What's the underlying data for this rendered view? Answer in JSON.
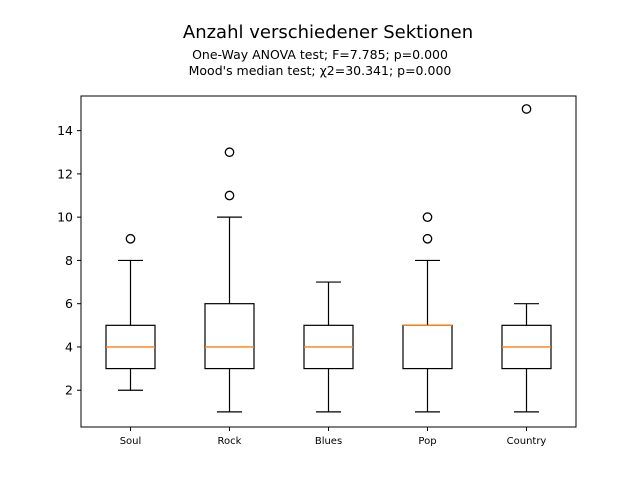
{
  "chart_data": {
    "type": "box",
    "title": "Anzahl verschiedener Sektionen",
    "subtitle_lines": [
      "One-Way ANOVA test; F=7.785; p=0.000",
      "Mood's median test; χ2=30.341; p=0.000"
    ],
    "xlabel": "",
    "ylabel": "",
    "ylim": [
      0.3,
      15.6
    ],
    "yticks": [
      2,
      4,
      6,
      8,
      10,
      12,
      14
    ],
    "grid": false,
    "categories": [
      "Soul",
      "Rock",
      "Blues",
      "Pop",
      "Country"
    ],
    "boxes": [
      {
        "category": "Soul",
        "whisker_low": 2,
        "q1": 3,
        "median": 4,
        "q3": 5,
        "whisker_high": 8,
        "outliers": [
          9
        ]
      },
      {
        "category": "Rock",
        "whisker_low": 1,
        "q1": 3,
        "median": 4,
        "q3": 6,
        "whisker_high": 10,
        "outliers": [
          11,
          13
        ]
      },
      {
        "category": "Blues",
        "whisker_low": 1,
        "q1": 3,
        "median": 4,
        "q3": 5,
        "whisker_high": 7,
        "outliers": []
      },
      {
        "category": "Pop",
        "whisker_low": 1,
        "q1": 3,
        "median": 5,
        "q3": 5,
        "whisker_high": 8,
        "outliers": [
          9,
          10
        ]
      },
      {
        "category": "Country",
        "whisker_low": 1,
        "q1": 3,
        "median": 4,
        "q3": 5,
        "whisker_high": 6,
        "outliers": [
          15
        ]
      }
    ],
    "colors": {
      "box": "#000000",
      "median": "#ff7f0e",
      "outlier": "#000000"
    }
  }
}
